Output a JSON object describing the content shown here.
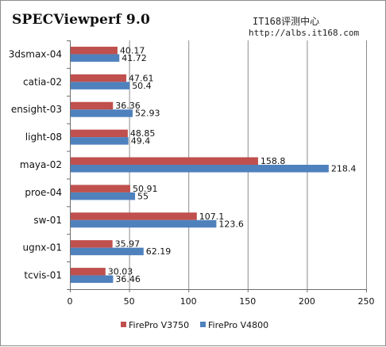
{
  "chart_data": {
    "type": "bar",
    "orientation": "horizontal",
    "title": "SPECViewperf 9.0",
    "watermark": {
      "line1": "IT168评测中心",
      "line2": "http://albs.it168.com"
    },
    "categories": [
      "3dsmax-04",
      "catia-02",
      "ensight-03",
      "light-08",
      "maya-02",
      "proe-04",
      "sw-01",
      "ugnx-01",
      "tcvis-01"
    ],
    "series": [
      {
        "name": "FirePro V3750",
        "color": "#c0504d",
        "values": [
          40.17,
          47.61,
          36.36,
          48.85,
          158.8,
          50.91,
          107.1,
          35.97,
          30.03
        ]
      },
      {
        "name": "FirePro V4800",
        "color": "#4f81bd",
        "values": [
          41.72,
          50.4,
          52.93,
          49.4,
          218.4,
          55,
          123.6,
          62.19,
          36.46
        ]
      }
    ],
    "xlim": [
      0,
      250
    ],
    "xticks": [
      0,
      50,
      100,
      150,
      200,
      250
    ],
    "grid": "vertical",
    "legend_position": "bottom",
    "xlabel": "",
    "ylabel": ""
  }
}
